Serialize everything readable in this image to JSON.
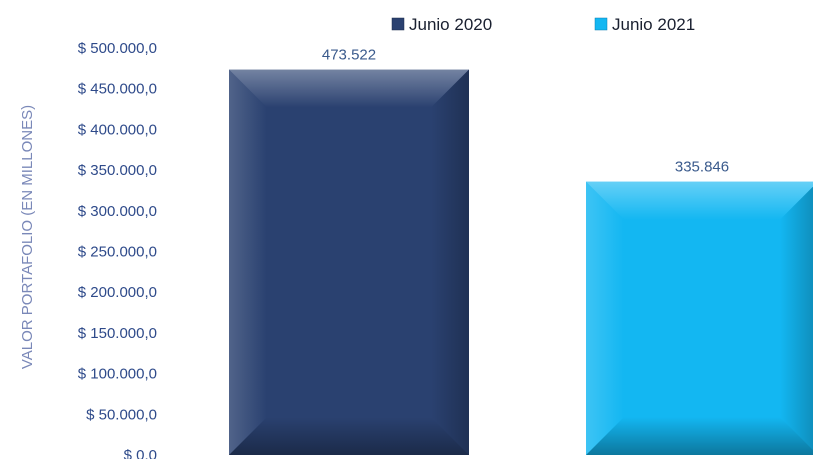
{
  "chart_data": {
    "type": "bar",
    "ylabel": "VALOR PORTAFOLIO (EN MILLONES)",
    "ylim": [
      0,
      500000
    ],
    "yticks": [
      "$ 0.0",
      "$ 50.000,0",
      "$ 100.000,0",
      "$ 150.000,0",
      "$ 200.000,0",
      "$ 250.000,0",
      "$ 300.000,0",
      "$ 350.000,0",
      "$ 400.000,0",
      "$ 450.000,0",
      "$ 500.000,0"
    ],
    "grid": false,
    "legend_position": "top",
    "series": [
      {
        "name": "Junio 2020",
        "value": 473522,
        "label": "473.522",
        "color": "#2a4170"
      },
      {
        "name": "Junio 2021",
        "value": 335846,
        "label": "335.846",
        "color": "#13b7f2"
      }
    ]
  }
}
